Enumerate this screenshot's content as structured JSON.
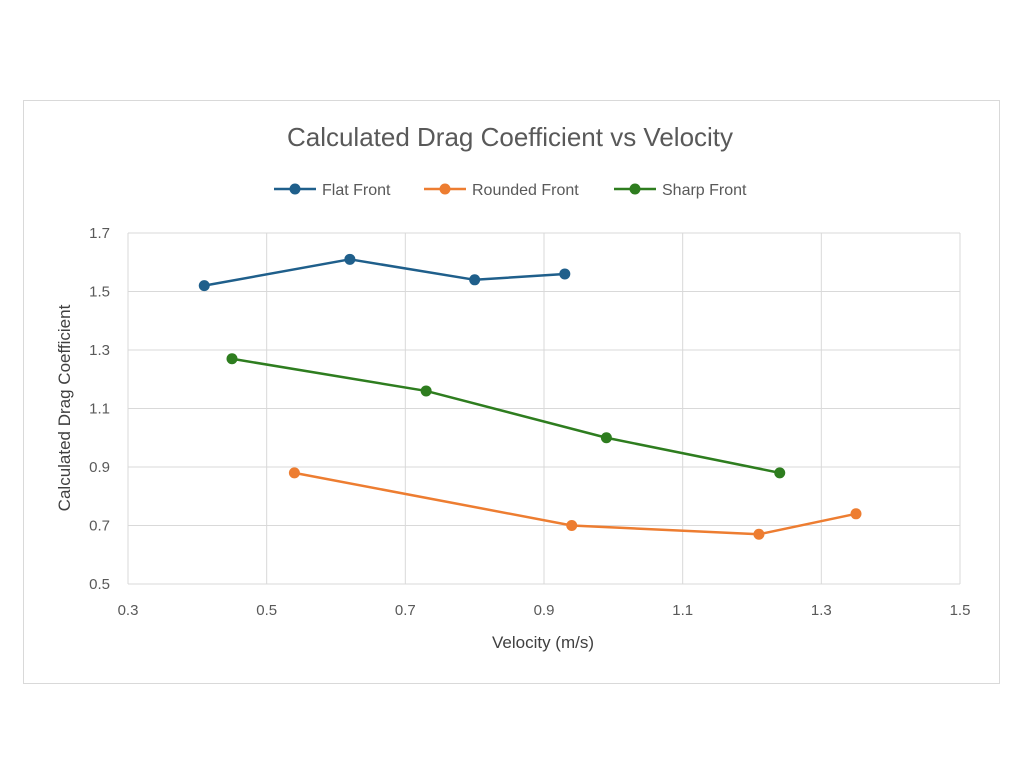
{
  "chart_data": {
    "type": "line",
    "title": "Calculated Drag Coefficient vs Velocity",
    "xlabel": "Velocity (m/s)",
    "ylabel": "Calculated Drag Coefficient",
    "xlim": [
      0.3,
      1.5
    ],
    "ylim": [
      0.5,
      1.7
    ],
    "xticks": [
      "0.3",
      "0.5",
      "0.7",
      "0.9",
      "1.1",
      "1.3",
      "1.5"
    ],
    "yticks": [
      "0.5",
      "0.7",
      "0.9",
      "1.1",
      "1.3",
      "1.5",
      "1.7"
    ],
    "grid": true,
    "legend_position": "top",
    "series": [
      {
        "name": "Flat Front",
        "color": "#1f5f8b",
        "x": [
          0.41,
          0.62,
          0.8,
          0.93
        ],
        "y": [
          1.52,
          1.61,
          1.54,
          1.56
        ]
      },
      {
        "name": "Rounded Front",
        "color": "#ed7d31",
        "x": [
          0.54,
          0.94,
          1.21,
          1.35
        ],
        "y": [
          0.88,
          0.7,
          0.67,
          0.74
        ]
      },
      {
        "name": "Sharp Front",
        "color": "#2e7d1f",
        "x": [
          0.45,
          0.73,
          0.99,
          1.24
        ],
        "y": [
          1.27,
          1.16,
          1.0,
          0.88
        ]
      }
    ]
  }
}
